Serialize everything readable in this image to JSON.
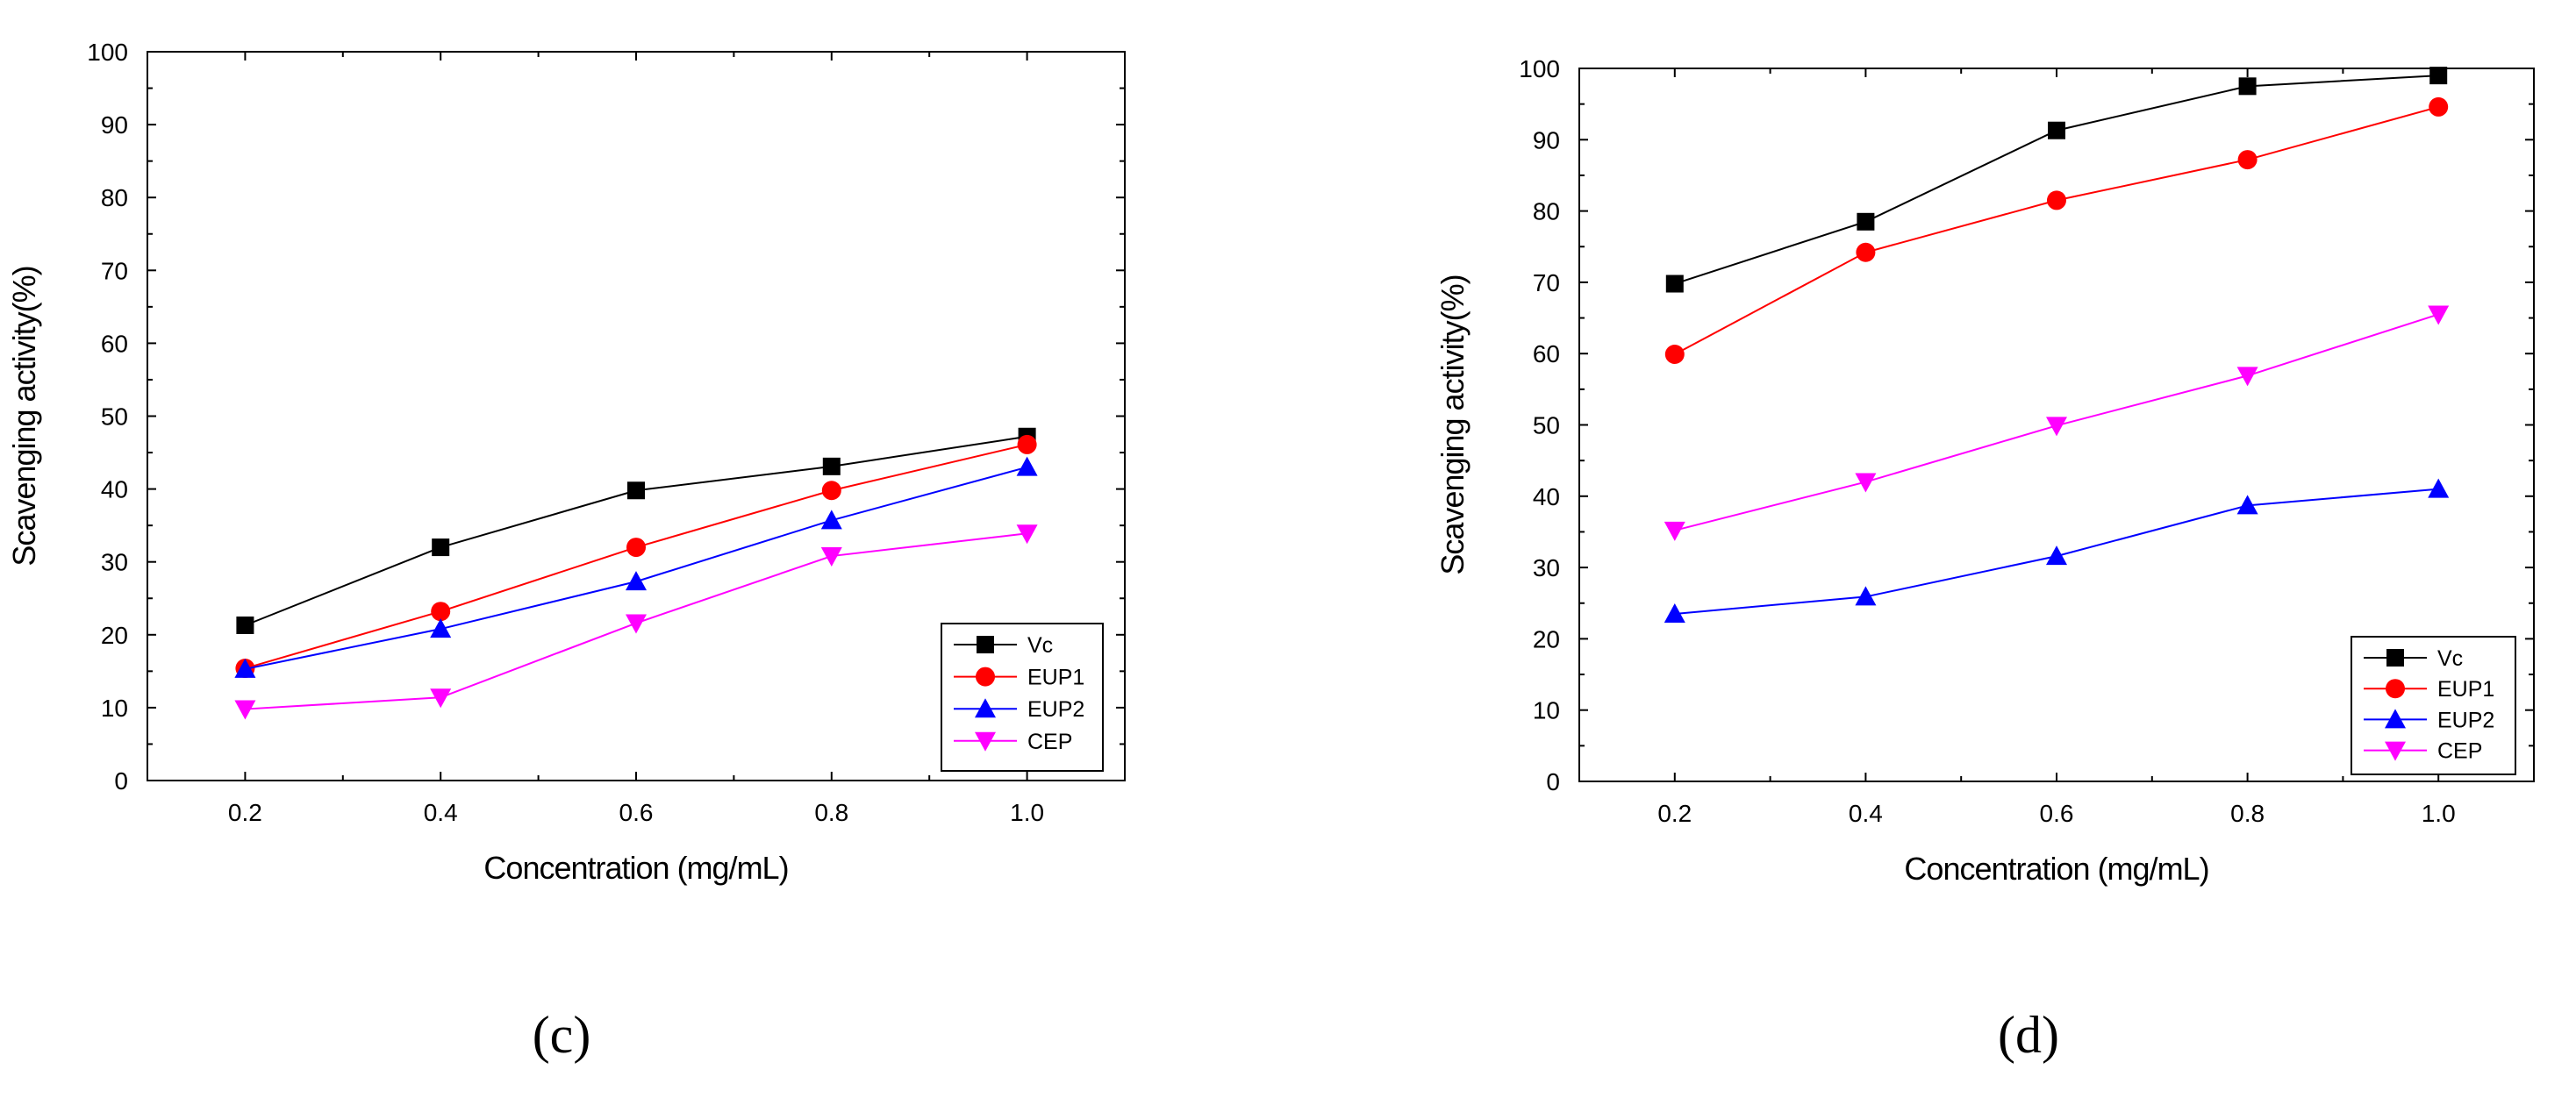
{
  "chart_data": [
    {
      "type": "line",
      "panel_label": "(c)",
      "x": [
        0.2,
        0.4,
        0.6,
        0.8,
        1.0
      ],
      "x_tick_labels": [
        "0.2",
        "0.4",
        "0.6",
        "0.8",
        "1.0"
      ],
      "y_tick_labels": [
        "0",
        "10",
        "20",
        "30",
        "40",
        "50",
        "60",
        "70",
        "80",
        "90",
        "100"
      ],
      "xlim": [
        0.1,
        1.1
      ],
      "ylim": [
        0,
        100
      ],
      "xlabel": "Concentration (mg/mL)",
      "ylabel": "Scavenging activity(%)",
      "legend_position": "bottom-right",
      "series": [
        {
          "name": "Vc",
          "color": "#000000",
          "marker": "square",
          "values": [
            21.3,
            32.0,
            39.8,
            43.1,
            47.2
          ]
        },
        {
          "name": "EUP1",
          "color": "#ff0000",
          "marker": "circle",
          "values": [
            15.4,
            23.2,
            32.0,
            39.8,
            46.1
          ]
        },
        {
          "name": "EUP2",
          "color": "#0000ff",
          "marker": "triangle-up",
          "values": [
            15.3,
            20.8,
            27.3,
            35.7,
            43.0
          ]
        },
        {
          "name": "CEP",
          "color": "#ff00ff",
          "marker": "triangle-down",
          "values": [
            9.8,
            11.4,
            21.6,
            30.8,
            33.9
          ]
        }
      ]
    },
    {
      "type": "line",
      "panel_label": "(d)",
      "x": [
        0.2,
        0.4,
        0.6,
        0.8,
        1.0
      ],
      "x_tick_labels": [
        "0.2",
        "0.4",
        "0.6",
        "0.8",
        "1.0"
      ],
      "y_tick_labels": [
        "0",
        "10",
        "20",
        "30",
        "40",
        "50",
        "60",
        "70",
        "80",
        "90",
        "100"
      ],
      "xlim": [
        0.1,
        1.1
      ],
      "ylim": [
        0,
        100
      ],
      "xlabel": "Concentration (mg/mL)",
      "ylabel": "Scavenging activity(%)",
      "legend_position": "bottom-right",
      "series": [
        {
          "name": "Vc",
          "color": "#000000",
          "marker": "square",
          "values": [
            69.8,
            78.5,
            91.3,
            97.5,
            99.0
          ]
        },
        {
          "name": "EUP1",
          "color": "#ff0000",
          "marker": "circle",
          "values": [
            59.9,
            74.2,
            81.5,
            87.2,
            94.6
          ]
        },
        {
          "name": "EUP2",
          "color": "#0000ff",
          "marker": "triangle-up",
          "values": [
            23.5,
            25.9,
            31.6,
            38.7,
            41.0
          ]
        },
        {
          "name": "CEP",
          "color": "#ff00ff",
          "marker": "triangle-down",
          "values": [
            35.2,
            42.0,
            49.9,
            56.9,
            65.5
          ]
        }
      ]
    }
  ]
}
